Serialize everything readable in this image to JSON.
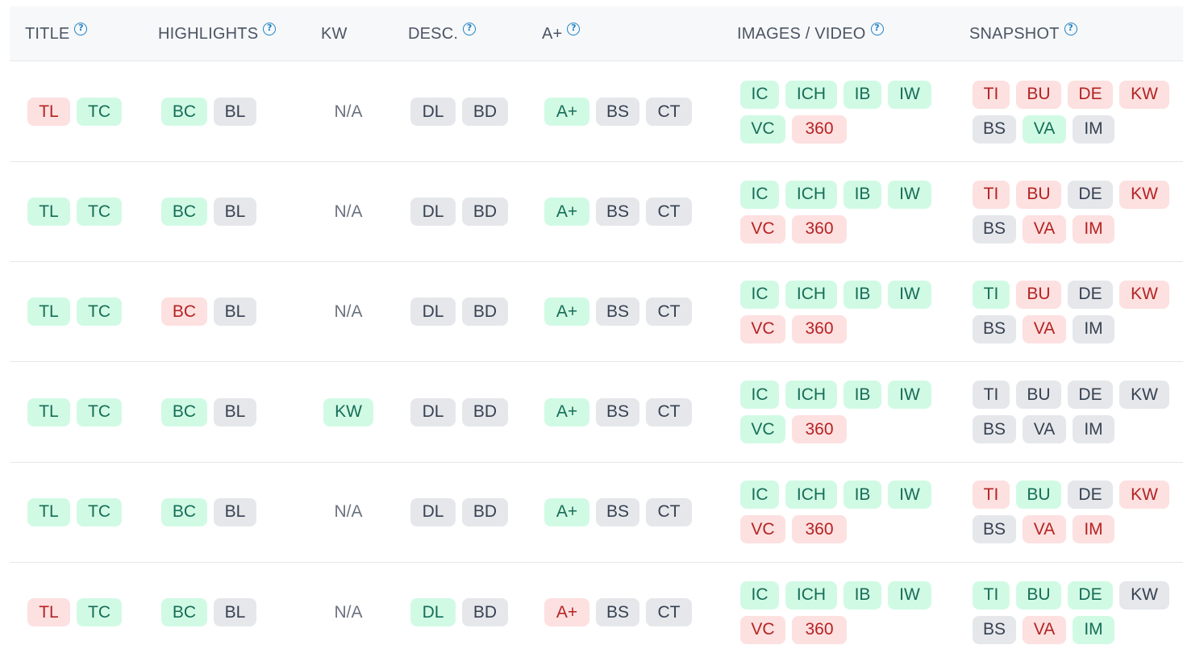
{
  "headers": {
    "title": "TITLE",
    "highlights": "HIGHLIGHTS",
    "kw": "KW",
    "desc": "DESC.",
    "aplus": "A+",
    "images_video": "IMAGES / VIDEO",
    "snapshot": "SNAPSHOT"
  },
  "na_label": "N/A",
  "colors": {
    "green_bg": "#d1fae5",
    "green_text": "#166d57",
    "red_bg": "#fde0e0",
    "red_text": "#b42323",
    "gray_bg": "#e5e7eb",
    "help_icon": "#1f83c4"
  },
  "rows": [
    {
      "title": [
        {
          "label": "TL",
          "status": "red"
        },
        {
          "label": "TC",
          "status": "green"
        }
      ],
      "highlights": [
        {
          "label": "BC",
          "status": "green"
        },
        {
          "label": "BL",
          "status": "gray"
        }
      ],
      "kw": {
        "type": "text",
        "label": "N/A"
      },
      "desc": [
        {
          "label": "DL",
          "status": "gray"
        },
        {
          "label": "BD",
          "status": "gray"
        }
      ],
      "aplus": [
        {
          "label": "A+",
          "status": "green"
        },
        {
          "label": "BS",
          "status": "gray"
        },
        {
          "label": "CT",
          "status": "gray"
        }
      ],
      "images": [
        {
          "label": "IC",
          "status": "green"
        },
        {
          "label": "ICH",
          "status": "green"
        },
        {
          "label": "IB",
          "status": "green"
        },
        {
          "label": "IW",
          "status": "green"
        },
        {
          "label": "VC",
          "status": "green"
        },
        {
          "label": "360",
          "status": "red"
        }
      ],
      "snapshot": [
        {
          "label": "TI",
          "status": "red"
        },
        {
          "label": "BU",
          "status": "red"
        },
        {
          "label": "DE",
          "status": "red"
        },
        {
          "label": "KW",
          "status": "red"
        },
        {
          "label": "BS",
          "status": "gray"
        },
        {
          "label": "VA",
          "status": "green"
        },
        {
          "label": "IM",
          "status": "gray"
        }
      ]
    },
    {
      "title": [
        {
          "label": "TL",
          "status": "green"
        },
        {
          "label": "TC",
          "status": "green"
        }
      ],
      "highlights": [
        {
          "label": "BC",
          "status": "green"
        },
        {
          "label": "BL",
          "status": "gray"
        }
      ],
      "kw": {
        "type": "text",
        "label": "N/A"
      },
      "desc": [
        {
          "label": "DL",
          "status": "gray"
        },
        {
          "label": "BD",
          "status": "gray"
        }
      ],
      "aplus": [
        {
          "label": "A+",
          "status": "green"
        },
        {
          "label": "BS",
          "status": "gray"
        },
        {
          "label": "CT",
          "status": "gray"
        }
      ],
      "images": [
        {
          "label": "IC",
          "status": "green"
        },
        {
          "label": "ICH",
          "status": "green"
        },
        {
          "label": "IB",
          "status": "green"
        },
        {
          "label": "IW",
          "status": "green"
        },
        {
          "label": "VC",
          "status": "red"
        },
        {
          "label": "360",
          "status": "red"
        }
      ],
      "snapshot": [
        {
          "label": "TI",
          "status": "red"
        },
        {
          "label": "BU",
          "status": "red"
        },
        {
          "label": "DE",
          "status": "gray"
        },
        {
          "label": "KW",
          "status": "red"
        },
        {
          "label": "BS",
          "status": "gray"
        },
        {
          "label": "VA",
          "status": "red"
        },
        {
          "label": "IM",
          "status": "red"
        }
      ]
    },
    {
      "title": [
        {
          "label": "TL",
          "status": "green"
        },
        {
          "label": "TC",
          "status": "green"
        }
      ],
      "highlights": [
        {
          "label": "BC",
          "status": "red"
        },
        {
          "label": "BL",
          "status": "gray"
        }
      ],
      "kw": {
        "type": "text",
        "label": "N/A"
      },
      "desc": [
        {
          "label": "DL",
          "status": "gray"
        },
        {
          "label": "BD",
          "status": "gray"
        }
      ],
      "aplus": [
        {
          "label": "A+",
          "status": "green"
        },
        {
          "label": "BS",
          "status": "gray"
        },
        {
          "label": "CT",
          "status": "gray"
        }
      ],
      "images": [
        {
          "label": "IC",
          "status": "green"
        },
        {
          "label": "ICH",
          "status": "green"
        },
        {
          "label": "IB",
          "status": "green"
        },
        {
          "label": "IW",
          "status": "green"
        },
        {
          "label": "VC",
          "status": "red"
        },
        {
          "label": "360",
          "status": "red"
        }
      ],
      "snapshot": [
        {
          "label": "TI",
          "status": "green"
        },
        {
          "label": "BU",
          "status": "red"
        },
        {
          "label": "DE",
          "status": "gray"
        },
        {
          "label": "KW",
          "status": "red"
        },
        {
          "label": "BS",
          "status": "gray"
        },
        {
          "label": "VA",
          "status": "red"
        },
        {
          "label": "IM",
          "status": "gray"
        }
      ]
    },
    {
      "title": [
        {
          "label": "TL",
          "status": "green"
        },
        {
          "label": "TC",
          "status": "green"
        }
      ],
      "highlights": [
        {
          "label": "BC",
          "status": "green"
        },
        {
          "label": "BL",
          "status": "gray"
        }
      ],
      "kw": {
        "type": "badge",
        "label": "KW",
        "status": "green"
      },
      "desc": [
        {
          "label": "DL",
          "status": "gray"
        },
        {
          "label": "BD",
          "status": "gray"
        }
      ],
      "aplus": [
        {
          "label": "A+",
          "status": "green"
        },
        {
          "label": "BS",
          "status": "gray"
        },
        {
          "label": "CT",
          "status": "gray"
        }
      ],
      "images": [
        {
          "label": "IC",
          "status": "green"
        },
        {
          "label": "ICH",
          "status": "green"
        },
        {
          "label": "IB",
          "status": "green"
        },
        {
          "label": "IW",
          "status": "green"
        },
        {
          "label": "VC",
          "status": "green"
        },
        {
          "label": "360",
          "status": "red"
        }
      ],
      "snapshot": [
        {
          "label": "TI",
          "status": "gray"
        },
        {
          "label": "BU",
          "status": "gray"
        },
        {
          "label": "DE",
          "status": "gray"
        },
        {
          "label": "KW",
          "status": "gray"
        },
        {
          "label": "BS",
          "status": "gray"
        },
        {
          "label": "VA",
          "status": "gray"
        },
        {
          "label": "IM",
          "status": "gray"
        }
      ]
    },
    {
      "title": [
        {
          "label": "TL",
          "status": "green"
        },
        {
          "label": "TC",
          "status": "green"
        }
      ],
      "highlights": [
        {
          "label": "BC",
          "status": "green"
        },
        {
          "label": "BL",
          "status": "gray"
        }
      ],
      "kw": {
        "type": "text",
        "label": "N/A"
      },
      "desc": [
        {
          "label": "DL",
          "status": "gray"
        },
        {
          "label": "BD",
          "status": "gray"
        }
      ],
      "aplus": [
        {
          "label": "A+",
          "status": "green"
        },
        {
          "label": "BS",
          "status": "gray"
        },
        {
          "label": "CT",
          "status": "gray"
        }
      ],
      "images": [
        {
          "label": "IC",
          "status": "green"
        },
        {
          "label": "ICH",
          "status": "green"
        },
        {
          "label": "IB",
          "status": "green"
        },
        {
          "label": "IW",
          "status": "green"
        },
        {
          "label": "VC",
          "status": "red"
        },
        {
          "label": "360",
          "status": "red"
        }
      ],
      "snapshot": [
        {
          "label": "TI",
          "status": "red"
        },
        {
          "label": "BU",
          "status": "green"
        },
        {
          "label": "DE",
          "status": "gray"
        },
        {
          "label": "KW",
          "status": "red"
        },
        {
          "label": "BS",
          "status": "gray"
        },
        {
          "label": "VA",
          "status": "red"
        },
        {
          "label": "IM",
          "status": "red"
        }
      ]
    },
    {
      "title": [
        {
          "label": "TL",
          "status": "red"
        },
        {
          "label": "TC",
          "status": "green"
        }
      ],
      "highlights": [
        {
          "label": "BC",
          "status": "green"
        },
        {
          "label": "BL",
          "status": "gray"
        }
      ],
      "kw": {
        "type": "text",
        "label": "N/A"
      },
      "desc": [
        {
          "label": "DL",
          "status": "green"
        },
        {
          "label": "BD",
          "status": "gray"
        }
      ],
      "aplus": [
        {
          "label": "A+",
          "status": "red"
        },
        {
          "label": "BS",
          "status": "gray"
        },
        {
          "label": "CT",
          "status": "gray"
        }
      ],
      "images": [
        {
          "label": "IC",
          "status": "green"
        },
        {
          "label": "ICH",
          "status": "green"
        },
        {
          "label": "IB",
          "status": "green"
        },
        {
          "label": "IW",
          "status": "green"
        },
        {
          "label": "VC",
          "status": "red"
        },
        {
          "label": "360",
          "status": "red"
        }
      ],
      "snapshot": [
        {
          "label": "TI",
          "status": "green"
        },
        {
          "label": "BU",
          "status": "green"
        },
        {
          "label": "DE",
          "status": "green"
        },
        {
          "label": "KW",
          "status": "gray"
        },
        {
          "label": "BS",
          "status": "gray"
        },
        {
          "label": "VA",
          "status": "red"
        },
        {
          "label": "IM",
          "status": "green"
        }
      ]
    }
  ]
}
